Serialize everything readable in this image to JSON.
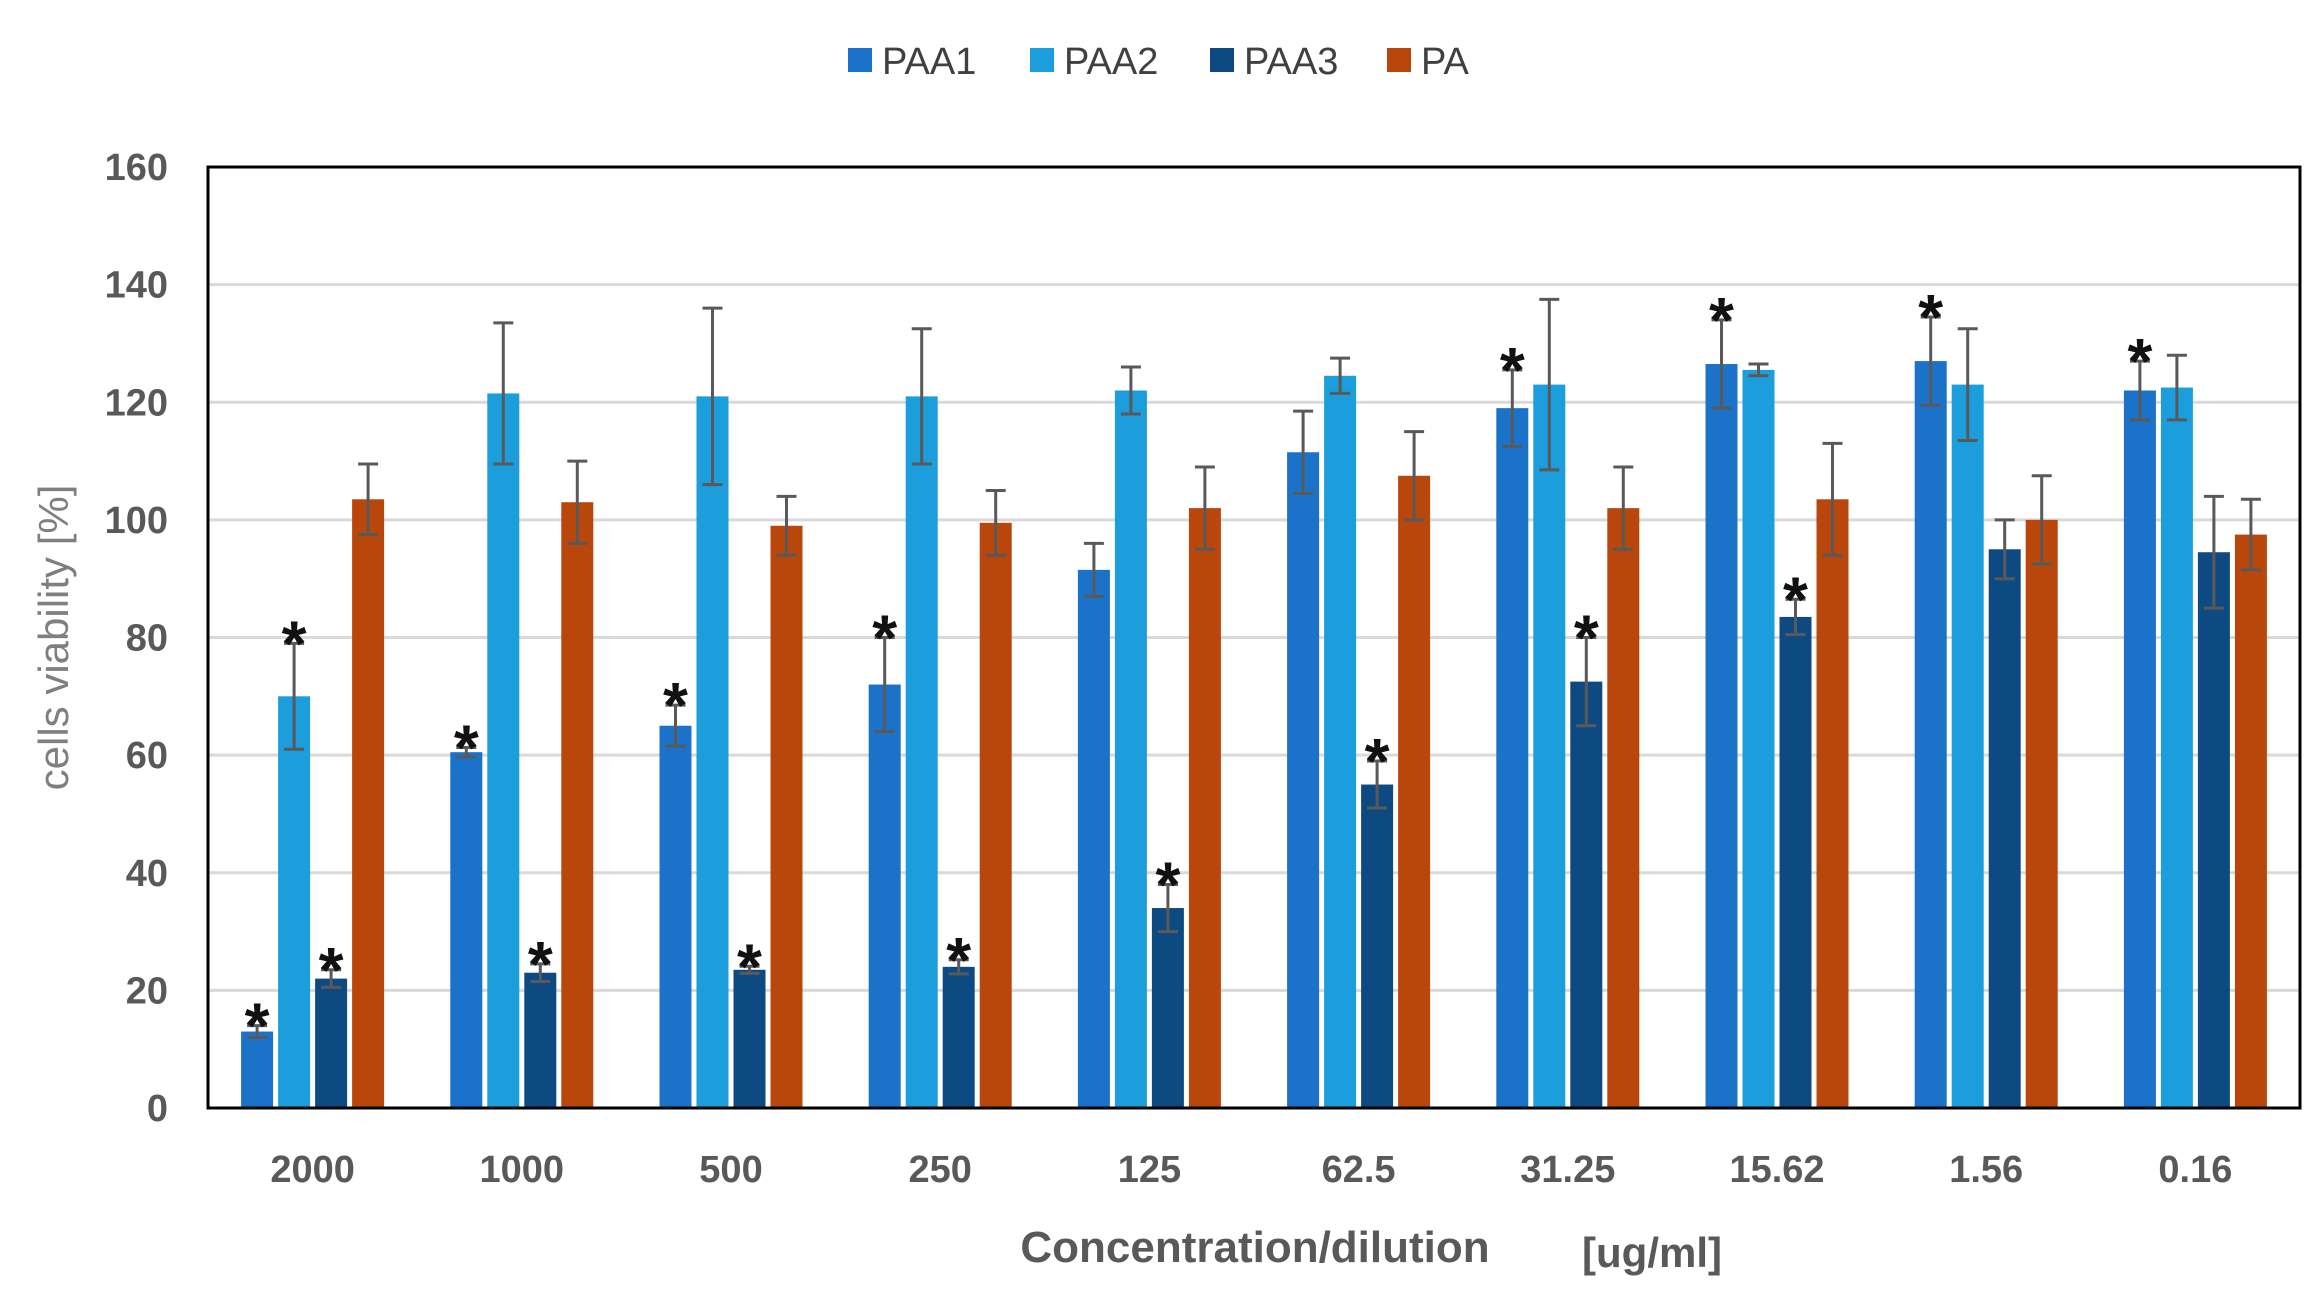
{
  "chart_data": {
    "type": "bar",
    "title": "",
    "xlabel": "Concentration/dilution",
    "xlabel_unit": "[ug/ml]",
    "ylabel": "cells viability  [%]",
    "ylim": [
      0,
      160
    ],
    "yticks": [
      0,
      20,
      40,
      60,
      80,
      100,
      120,
      140,
      160
    ],
    "grid": true,
    "legend_position": "top",
    "categories": [
      "2000",
      "1000",
      "500",
      "250",
      "125",
      "62.5",
      "31.25",
      "15.62",
      "1.56",
      "0.16"
    ],
    "significance_marker": "*",
    "series": [
      {
        "name": "PAA1",
        "color": "#1b73c9",
        "values": [
          13,
          60.5,
          65,
          72,
          91.5,
          111.5,
          119,
          126.5,
          127,
          122
        ],
        "errors": [
          1,
          0.8,
          3.5,
          8,
          4.5,
          7,
          6.5,
          7.5,
          7.5,
          5
        ],
        "significant": [
          true,
          true,
          true,
          true,
          false,
          false,
          true,
          true,
          true,
          true
        ]
      },
      {
        "name": "PAA2",
        "color": "#1b9edb",
        "values": [
          70,
          121.5,
          121,
          121,
          122,
          124.5,
          123,
          125.5,
          123,
          122.5
        ],
        "errors": [
          9,
          12,
          15,
          11.5,
          4,
          3,
          14.5,
          1,
          9.5,
          5.5
        ],
        "significant": [
          true,
          false,
          false,
          false,
          false,
          false,
          false,
          false,
          false,
          false
        ]
      },
      {
        "name": "PAA3",
        "color": "#0e4a82",
        "values": [
          22,
          23,
          23.5,
          24,
          34,
          55,
          72.5,
          83.5,
          95,
          94.5
        ],
        "errors": [
          1.5,
          1.5,
          0.6,
          1.2,
          4,
          4,
          7.5,
          3,
          5,
          9.5
        ],
        "significant": [
          true,
          true,
          true,
          true,
          true,
          true,
          true,
          true,
          false,
          false
        ]
      },
      {
        "name": "PA",
        "color": "#b9470b",
        "values": [
          103.5,
          103,
          99,
          99.5,
          102,
          107.5,
          102,
          103.5,
          100,
          97.5
        ],
        "errors": [
          6,
          7,
          5,
          5.5,
          7,
          7.5,
          7,
          9.5,
          7.5,
          6
        ],
        "significant": [
          false,
          false,
          false,
          false,
          false,
          false,
          false,
          false,
          false,
          false
        ]
      }
    ]
  }
}
